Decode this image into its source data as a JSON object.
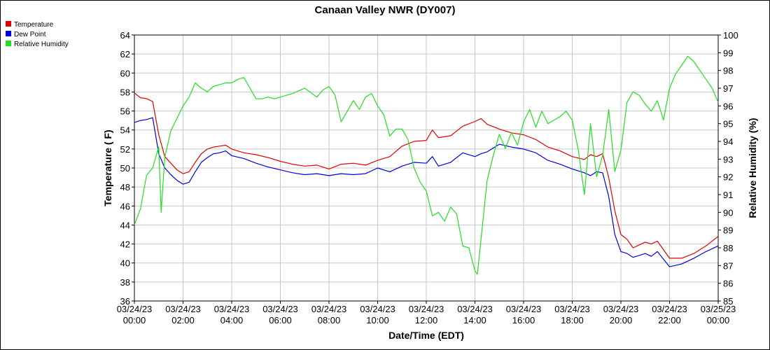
{
  "chart_data": {
    "type": "line",
    "title": "Canaan Valley NWR (DY007)",
    "xlabel": "Date/Time (EDT)",
    "ylabel": "Temperature ( F)",
    "y2label": "Relative Humidity (%)",
    "ylim": [
      36,
      64
    ],
    "y2lim": [
      85,
      100
    ],
    "grid": true,
    "legend_position": "top-left",
    "x_ticks": [
      {
        "date": "03/24/23",
        "time": "00:00",
        "hour": 0
      },
      {
        "date": "03/24/23",
        "time": "02:00",
        "hour": 2
      },
      {
        "date": "03/24/23",
        "time": "04:00",
        "hour": 4
      },
      {
        "date": "03/24/23",
        "time": "06:00",
        "hour": 6
      },
      {
        "date": "03/24/23",
        "time": "08:00",
        "hour": 8
      },
      {
        "date": "03/24/23",
        "time": "10:00",
        "hour": 10
      },
      {
        "date": "03/24/23",
        "time": "12:00",
        "hour": 12
      },
      {
        "date": "03/24/23",
        "time": "14:00",
        "hour": 14
      },
      {
        "date": "03/24/23",
        "time": "16:00",
        "hour": 16
      },
      {
        "date": "03/24/23",
        "time": "18:00",
        "hour": 18
      },
      {
        "date": "03/24/23",
        "time": "20:00",
        "hour": 20
      },
      {
        "date": "03/24/23",
        "time": "22:00",
        "hour": 22
      },
      {
        "date": "03/25/23",
        "time": "00:00",
        "hour": 24
      }
    ],
    "y_ticks": [
      36,
      38,
      40,
      42,
      44,
      46,
      48,
      50,
      52,
      54,
      56,
      58,
      60,
      62,
      64
    ],
    "y2_ticks": [
      85,
      86,
      87,
      88,
      89,
      90,
      91,
      92,
      93,
      94,
      95,
      96,
      97,
      98,
      99,
      100
    ],
    "series": [
      {
        "name": "Temperature",
        "color": "#e00000",
        "axis": "left",
        "x": [
          0,
          0.25,
          0.5,
          0.75,
          1,
          1.25,
          1.5,
          1.75,
          2,
          2.25,
          2.5,
          2.75,
          3,
          3.25,
          3.5,
          3.75,
          4,
          4.5,
          5,
          5.5,
          6,
          6.5,
          7,
          7.5,
          8,
          8.5,
          9,
          9.5,
          10,
          10.5,
          11,
          11.5,
          12,
          12.25,
          12.5,
          13,
          13.5,
          14,
          14.25,
          14.5,
          15,
          15.5,
          16,
          16.5,
          17,
          17.5,
          18,
          18.5,
          18.75,
          19,
          19.25,
          19.5,
          19.75,
          20,
          20.25,
          20.5,
          20.75,
          21,
          21.25,
          21.5,
          22,
          22.5,
          23,
          23.5,
          24
        ],
        "values": [
          57.9,
          57.4,
          57.3,
          57.0,
          53.5,
          51.2,
          50.5,
          49.8,
          49.4,
          49.6,
          50.6,
          51.5,
          52.0,
          52.2,
          52.3,
          52.4,
          52.0,
          51.6,
          51.4,
          51.1,
          50.7,
          50.4,
          50.2,
          50.3,
          49.9,
          50.4,
          50.5,
          50.3,
          50.8,
          51.2,
          52.3,
          52.8,
          52.9,
          54.0,
          53.2,
          53.4,
          54.4,
          54.9,
          55.2,
          54.6,
          54.1,
          53.7,
          53.5,
          53.0,
          52.2,
          51.8,
          51.2,
          50.9,
          51.4,
          51.2,
          51.5,
          49.0,
          45.5,
          43.0,
          42.5,
          41.6,
          41.9,
          42.2,
          42.0,
          42.3,
          40.5,
          40.5,
          41.0,
          41.8,
          42.8
        ]
      },
      {
        "name": "Dew Point",
        "color": "#0000e0",
        "axis": "left",
        "x": [
          0,
          0.25,
          0.5,
          0.75,
          1,
          1.25,
          1.5,
          1.75,
          2,
          2.25,
          2.5,
          2.75,
          3,
          3.25,
          3.5,
          3.75,
          4,
          4.5,
          5,
          5.5,
          6,
          6.5,
          7,
          7.5,
          8,
          8.5,
          9,
          9.5,
          10,
          10.5,
          11,
          11.5,
          12,
          12.25,
          12.5,
          13,
          13.5,
          14,
          14.25,
          14.5,
          15,
          15.5,
          16,
          16.5,
          17,
          17.5,
          18,
          18.5,
          18.75,
          19,
          19.25,
          19.5,
          19.75,
          20,
          20.25,
          20.5,
          20.75,
          21,
          21.25,
          21.5,
          22,
          22.5,
          23,
          23.5,
          24
        ],
        "values": [
          54.8,
          55.0,
          55.1,
          55.3,
          51.5,
          50.0,
          49.3,
          48.7,
          48.3,
          48.5,
          49.6,
          50.6,
          51.1,
          51.5,
          51.6,
          51.8,
          51.3,
          51.0,
          50.5,
          50.1,
          49.8,
          49.5,
          49.3,
          49.4,
          49.2,
          49.4,
          49.3,
          49.4,
          50.0,
          49.6,
          50.2,
          50.6,
          50.5,
          51.2,
          50.2,
          50.6,
          51.6,
          51.2,
          51.5,
          51.7,
          52.5,
          52.2,
          52.0,
          51.6,
          50.8,
          50.4,
          49.9,
          49.5,
          49.2,
          49.6,
          49.5,
          47.0,
          43.0,
          41.2,
          41.0,
          40.6,
          40.8,
          41.0,
          40.7,
          41.2,
          39.6,
          39.9,
          40.5,
          41.2,
          41.8
        ]
      },
      {
        "name": "Relative Humidity",
        "color": "#20e020",
        "axis": "right",
        "x": [
          0,
          0.25,
          0.5,
          0.75,
          1,
          1.1,
          1.25,
          1.5,
          1.75,
          2,
          2.25,
          2.5,
          2.75,
          3,
          3.25,
          3.5,
          3.75,
          4,
          4.25,
          4.5,
          4.75,
          5,
          5.25,
          5.5,
          5.75,
          6,
          6.5,
          7,
          7.5,
          7.75,
          8,
          8.25,
          8.5,
          8.75,
          9,
          9.25,
          9.5,
          9.75,
          10,
          10.25,
          10.5,
          10.75,
          11,
          11.25,
          11.5,
          11.75,
          12,
          12.25,
          12.5,
          12.75,
          13,
          13.25,
          13.5,
          13.75,
          14,
          14.1,
          14.25,
          14.5,
          14.75,
          15,
          15.25,
          15.5,
          15.75,
          16,
          16.25,
          16.5,
          16.75,
          17,
          17.25,
          17.5,
          17.75,
          18,
          18.25,
          18.5,
          18.75,
          19,
          19.25,
          19.5,
          19.75,
          20,
          20.25,
          20.5,
          20.75,
          21,
          21.25,
          21.5,
          21.75,
          22,
          22.25,
          22.5,
          22.75,
          23,
          23.25,
          23.5,
          23.75,
          24
        ],
        "values": [
          89.3,
          90.2,
          92.1,
          92.5,
          93.7,
          90.0,
          93.1,
          94.6,
          95.3,
          96.0,
          96.5,
          97.3,
          97.0,
          96.8,
          97.1,
          97.2,
          97.3,
          97.3,
          97.5,
          97.6,
          97.0,
          96.4,
          96.4,
          96.5,
          96.4,
          96.5,
          96.7,
          97.0,
          96.5,
          96.9,
          97.1,
          96.6,
          95.1,
          95.7,
          96.3,
          95.8,
          96.5,
          96.7,
          96.0,
          95.5,
          94.3,
          94.7,
          94.7,
          94.1,
          92.5,
          91.7,
          91.2,
          89.8,
          90.0,
          89.5,
          90.3,
          89.9,
          88.1,
          88.0,
          86.7,
          86.5,
          88.5,
          91.8,
          93.2,
          94.4,
          93.6,
          94.5,
          93.8,
          95.1,
          95.8,
          94.8,
          95.7,
          95.0,
          95.2,
          95.4,
          95.7,
          95.2,
          93.5,
          91.0,
          95.0,
          92.0,
          93.2,
          95.8,
          92.3,
          93.5,
          96.2,
          96.8,
          96.6,
          96.1,
          95.7,
          96.3,
          95.2,
          97.0,
          97.8,
          98.3,
          98.8,
          98.5,
          98.0,
          97.5,
          97.0,
          96.2
        ]
      }
    ]
  }
}
